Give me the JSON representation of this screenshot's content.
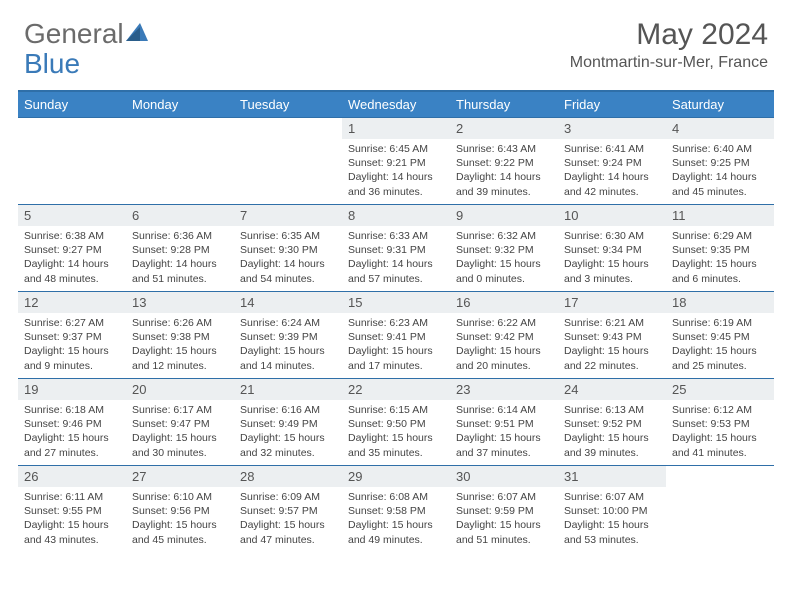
{
  "brand": {
    "part1": "General",
    "part2": "Blue"
  },
  "title": "May 2024",
  "location": "Montmartin-sur-Mer, France",
  "colors": {
    "header_bg": "#3a82c4",
    "header_border": "#2f6fa8",
    "daynum_bg": "#eceff1",
    "text": "#444444",
    "title_text": "#555555",
    "logo_gray": "#6b6b6b",
    "logo_blue": "#3a7ab8"
  },
  "day_names": [
    "Sunday",
    "Monday",
    "Tuesday",
    "Wednesday",
    "Thursday",
    "Friday",
    "Saturday"
  ],
  "weeks": [
    [
      {
        "n": "",
        "empty": true
      },
      {
        "n": "",
        "empty": true
      },
      {
        "n": "",
        "empty": true
      },
      {
        "n": "1",
        "sunrise": "6:45 AM",
        "sunset": "9:21 PM",
        "daylight": "14 hours and 36 minutes."
      },
      {
        "n": "2",
        "sunrise": "6:43 AM",
        "sunset": "9:22 PM",
        "daylight": "14 hours and 39 minutes."
      },
      {
        "n": "3",
        "sunrise": "6:41 AM",
        "sunset": "9:24 PM",
        "daylight": "14 hours and 42 minutes."
      },
      {
        "n": "4",
        "sunrise": "6:40 AM",
        "sunset": "9:25 PM",
        "daylight": "14 hours and 45 minutes."
      }
    ],
    [
      {
        "n": "5",
        "sunrise": "6:38 AM",
        "sunset": "9:27 PM",
        "daylight": "14 hours and 48 minutes."
      },
      {
        "n": "6",
        "sunrise": "6:36 AM",
        "sunset": "9:28 PM",
        "daylight": "14 hours and 51 minutes."
      },
      {
        "n": "7",
        "sunrise": "6:35 AM",
        "sunset": "9:30 PM",
        "daylight": "14 hours and 54 minutes."
      },
      {
        "n": "8",
        "sunrise": "6:33 AM",
        "sunset": "9:31 PM",
        "daylight": "14 hours and 57 minutes."
      },
      {
        "n": "9",
        "sunrise": "6:32 AM",
        "sunset": "9:32 PM",
        "daylight": "15 hours and 0 minutes."
      },
      {
        "n": "10",
        "sunrise": "6:30 AM",
        "sunset": "9:34 PM",
        "daylight": "15 hours and 3 minutes."
      },
      {
        "n": "11",
        "sunrise": "6:29 AM",
        "sunset": "9:35 PM",
        "daylight": "15 hours and 6 minutes."
      }
    ],
    [
      {
        "n": "12",
        "sunrise": "6:27 AM",
        "sunset": "9:37 PM",
        "daylight": "15 hours and 9 minutes."
      },
      {
        "n": "13",
        "sunrise": "6:26 AM",
        "sunset": "9:38 PM",
        "daylight": "15 hours and 12 minutes."
      },
      {
        "n": "14",
        "sunrise": "6:24 AM",
        "sunset": "9:39 PM",
        "daylight": "15 hours and 14 minutes."
      },
      {
        "n": "15",
        "sunrise": "6:23 AM",
        "sunset": "9:41 PM",
        "daylight": "15 hours and 17 minutes."
      },
      {
        "n": "16",
        "sunrise": "6:22 AM",
        "sunset": "9:42 PM",
        "daylight": "15 hours and 20 minutes."
      },
      {
        "n": "17",
        "sunrise": "6:21 AM",
        "sunset": "9:43 PM",
        "daylight": "15 hours and 22 minutes."
      },
      {
        "n": "18",
        "sunrise": "6:19 AM",
        "sunset": "9:45 PM",
        "daylight": "15 hours and 25 minutes."
      }
    ],
    [
      {
        "n": "19",
        "sunrise": "6:18 AM",
        "sunset": "9:46 PM",
        "daylight": "15 hours and 27 minutes."
      },
      {
        "n": "20",
        "sunrise": "6:17 AM",
        "sunset": "9:47 PM",
        "daylight": "15 hours and 30 minutes."
      },
      {
        "n": "21",
        "sunrise": "6:16 AM",
        "sunset": "9:49 PM",
        "daylight": "15 hours and 32 minutes."
      },
      {
        "n": "22",
        "sunrise": "6:15 AM",
        "sunset": "9:50 PM",
        "daylight": "15 hours and 35 minutes."
      },
      {
        "n": "23",
        "sunrise": "6:14 AM",
        "sunset": "9:51 PM",
        "daylight": "15 hours and 37 minutes."
      },
      {
        "n": "24",
        "sunrise": "6:13 AM",
        "sunset": "9:52 PM",
        "daylight": "15 hours and 39 minutes."
      },
      {
        "n": "25",
        "sunrise": "6:12 AM",
        "sunset": "9:53 PM",
        "daylight": "15 hours and 41 minutes."
      }
    ],
    [
      {
        "n": "26",
        "sunrise": "6:11 AM",
        "sunset": "9:55 PM",
        "daylight": "15 hours and 43 minutes."
      },
      {
        "n": "27",
        "sunrise": "6:10 AM",
        "sunset": "9:56 PM",
        "daylight": "15 hours and 45 minutes."
      },
      {
        "n": "28",
        "sunrise": "6:09 AM",
        "sunset": "9:57 PM",
        "daylight": "15 hours and 47 minutes."
      },
      {
        "n": "29",
        "sunrise": "6:08 AM",
        "sunset": "9:58 PM",
        "daylight": "15 hours and 49 minutes."
      },
      {
        "n": "30",
        "sunrise": "6:07 AM",
        "sunset": "9:59 PM",
        "daylight": "15 hours and 51 minutes."
      },
      {
        "n": "31",
        "sunrise": "6:07 AM",
        "sunset": "10:00 PM",
        "daylight": "15 hours and 53 minutes."
      },
      {
        "n": "",
        "empty": true
      }
    ]
  ]
}
